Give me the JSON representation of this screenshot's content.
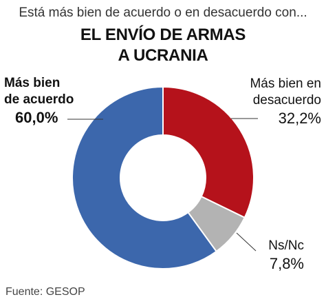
{
  "header": {
    "subtitle": "Está más bien de acuerdo o en desacuerdo con...",
    "title_line1": "EL ENVÍO DE ARMAS",
    "title_line2": "A UCRANIA"
  },
  "source": "Fuente: GESOP",
  "chart_data": {
    "type": "pie",
    "variant": "donut",
    "slices": [
      {
        "label_lines": [
          "Más bien en",
          "desacuerdo"
        ],
        "value_label": "32,2%",
        "value": 32.2,
        "color": "#B5121B",
        "emphasis": false
      },
      {
        "label_lines": [
          "Ns/Nc"
        ],
        "value_label": "7,8%",
        "value": 7.8,
        "color": "#B3B3B3",
        "emphasis": false
      },
      {
        "label_lines": [
          "Más bien",
          "de acuerdo"
        ],
        "value_label": "60,0%",
        "value": 60.0,
        "color": "#3C67AC",
        "emphasis": true
      }
    ]
  }
}
